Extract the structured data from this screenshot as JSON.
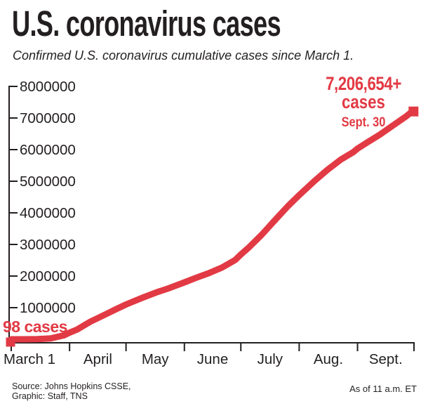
{
  "header": {
    "title": "U.S. coronavirus cases",
    "subtitle": "Confirmed U.S. coronavirus cumulative cases since March 1."
  },
  "annotations": {
    "start_label": "98 cases",
    "end_value": "7,206,654+",
    "end_unit": "cases",
    "end_date": "Sept. 30"
  },
  "footer": {
    "source_line1": "Source: Johns Hopkins CSSE,",
    "source_line2": "Graphic: Staff, TNS",
    "as_of": "As of 11 a.m. ET"
  },
  "colors": {
    "line": "#e23a44",
    "axis": "#231f20",
    "background": "#ffffff"
  },
  "chart_data": {
    "type": "line",
    "title": "U.S. coronavirus cases",
    "subtitle": "Confirmed U.S. coronavirus cumulative cases since March 1.",
    "xlabel": "",
    "ylabel": "",
    "grid": false,
    "legend": "none",
    "ylim": [
      0,
      8000000
    ],
    "y_ticks": [
      1000000,
      2000000,
      3000000,
      4000000,
      5000000,
      6000000,
      7000000,
      8000000
    ],
    "x_tick_labels": [
      "March 1",
      "April",
      "May",
      "June",
      "July",
      "Aug.",
      "Sept."
    ],
    "x_range_days": [
      0,
      214
    ],
    "month_start_days": [
      0,
      31,
      61,
      92,
      122,
      153,
      184,
      214
    ],
    "key_values": [
      {
        "label": "March 1",
        "cases": 98
      },
      {
        "label": "April 1",
        "cases": 210000
      },
      {
        "label": "May 1",
        "cases": 1100000
      },
      {
        "label": "June 1",
        "cases": 1800000
      },
      {
        "label": "July 1",
        "cases": 2680000
      },
      {
        "label": "Aug. 1",
        "cases": 4560000
      },
      {
        "label": "Sept. 1",
        "cases": 6030000
      },
      {
        "label": "Sept. 30",
        "cases": 7206654
      }
    ],
    "series": [
      {
        "name": "Cumulative confirmed cases",
        "points": [
          [
            0,
            98
          ],
          [
            7,
            500
          ],
          [
            14,
            3500
          ],
          [
            21,
            26000
          ],
          [
            28,
            125000
          ],
          [
            31,
            210000
          ],
          [
            35,
            310000
          ],
          [
            42,
            555000
          ],
          [
            49,
            755000
          ],
          [
            56,
            960000
          ],
          [
            61,
            1100000
          ],
          [
            70,
            1320000
          ],
          [
            77,
            1480000
          ],
          [
            84,
            1620000
          ],
          [
            92,
            1800000
          ],
          [
            98,
            1940000
          ],
          [
            105,
            2090000
          ],
          [
            112,
            2270000
          ],
          [
            119,
            2510000
          ],
          [
            122,
            2680000
          ],
          [
            126,
            2890000
          ],
          [
            133,
            3300000
          ],
          [
            140,
            3760000
          ],
          [
            147,
            4210000
          ],
          [
            153,
            4560000
          ],
          [
            161,
            5000000
          ],
          [
            168,
            5360000
          ],
          [
            175,
            5680000
          ],
          [
            182,
            5930000
          ],
          [
            184,
            6030000
          ],
          [
            189,
            6220000
          ],
          [
            196,
            6480000
          ],
          [
            203,
            6770000
          ],
          [
            210,
            7060000
          ],
          [
            213,
            7206654
          ]
        ]
      }
    ]
  }
}
